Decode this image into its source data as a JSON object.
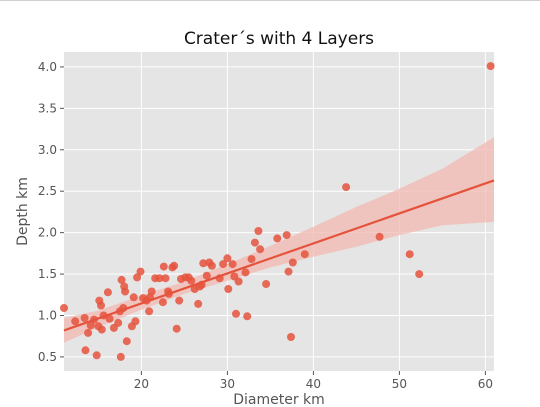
{
  "chart_data": {
    "type": "scatter",
    "title": "Crater´s with 4 Layers",
    "xlabel": "Diameter km",
    "ylabel": "Depth km",
    "xlim": [
      11,
      61
    ],
    "ylim": [
      0.33,
      4.18
    ],
    "x_ticks": [
      20,
      30,
      40,
      50,
      60
    ],
    "x_tick_labels": [
      "20",
      "30",
      "40",
      "50",
      "60"
    ],
    "y_ticks": [
      0.5,
      1.0,
      1.5,
      2.0,
      2.5,
      3.0,
      3.5,
      4.0
    ],
    "y_tick_labels": [
      "0.5",
      "1.0",
      "1.5",
      "2.0",
      "2.5",
      "3.0",
      "3.5",
      "4.0"
    ],
    "grid": true,
    "colors": {
      "points": "#e5533d",
      "line": "#e5533d",
      "band": "#f2b8b0",
      "background": "#e5e5e5",
      "grid": "#ffffff"
    },
    "points": [
      [
        11.0,
        1.09
      ],
      [
        12.3,
        0.93
      ],
      [
        13.4,
        0.97
      ],
      [
        13.5,
        0.58
      ],
      [
        13.8,
        0.79
      ],
      [
        14.1,
        0.88
      ],
      [
        14.5,
        0.95
      ],
      [
        14.8,
        0.52
      ],
      [
        15.0,
        0.87
      ],
      [
        15.1,
        1.18
      ],
      [
        15.3,
        1.12
      ],
      [
        15.4,
        0.83
      ],
      [
        15.6,
        1.0
      ],
      [
        16.1,
        1.28
      ],
      [
        16.3,
        0.96
      ],
      [
        16.8,
        0.85
      ],
      [
        17.3,
        0.91
      ],
      [
        17.5,
        1.05
      ],
      [
        17.6,
        0.5
      ],
      [
        17.7,
        1.43
      ],
      [
        17.9,
        1.09
      ],
      [
        18.0,
        1.35
      ],
      [
        18.1,
        1.29
      ],
      [
        18.3,
        0.69
      ],
      [
        18.9,
        0.87
      ],
      [
        19.1,
        1.22
      ],
      [
        19.3,
        0.93
      ],
      [
        19.5,
        1.46
      ],
      [
        19.9,
        1.53
      ],
      [
        20.2,
        1.21
      ],
      [
        20.6,
        1.18
      ],
      [
        20.9,
        1.05
      ],
      [
        21.0,
        1.22
      ],
      [
        21.2,
        1.29
      ],
      [
        21.6,
        1.45
      ],
      [
        22.1,
        1.45
      ],
      [
        22.5,
        1.16
      ],
      [
        22.6,
        1.59
      ],
      [
        22.8,
        1.45
      ],
      [
        23.1,
        1.29
      ],
      [
        23.2,
        1.26
      ],
      [
        23.6,
        1.58
      ],
      [
        23.8,
        1.6
      ],
      [
        24.1,
        0.84
      ],
      [
        24.4,
        1.18
      ],
      [
        24.6,
        1.44
      ],
      [
        25.1,
        1.46
      ],
      [
        25.5,
        1.46
      ],
      [
        25.8,
        1.42
      ],
      [
        26.2,
        1.32
      ],
      [
        26.6,
        1.14
      ],
      [
        26.8,
        1.35
      ],
      [
        27.0,
        1.37
      ],
      [
        27.2,
        1.63
      ],
      [
        27.6,
        1.48
      ],
      [
        27.9,
        1.64
      ],
      [
        28.2,
        1.6
      ],
      [
        29.1,
        1.45
      ],
      [
        29.5,
        1.62
      ],
      [
        30.0,
        1.69
      ],
      [
        30.1,
        1.32
      ],
      [
        30.6,
        1.62
      ],
      [
        30.8,
        1.47
      ],
      [
        31.0,
        1.02
      ],
      [
        31.3,
        1.41
      ],
      [
        32.1,
        1.52
      ],
      [
        32.3,
        0.99
      ],
      [
        32.8,
        1.68
      ],
      [
        33.2,
        1.88
      ],
      [
        33.6,
        2.02
      ],
      [
        33.8,
        1.8
      ],
      [
        34.5,
        1.38
      ],
      [
        35.8,
        1.93
      ],
      [
        36.9,
        1.97
      ],
      [
        37.1,
        1.53
      ],
      [
        37.4,
        0.74
      ],
      [
        37.6,
        1.64
      ],
      [
        39.0,
        1.74
      ],
      [
        43.8,
        2.55
      ],
      [
        47.7,
        1.95
      ],
      [
        51.2,
        1.74
      ],
      [
        52.3,
        1.5
      ],
      [
        60.6,
        4.01
      ]
    ],
    "regression": {
      "x": [
        11,
        61
      ],
      "y": [
        0.82,
        2.63
      ]
    },
    "confidence_band": {
      "x": [
        11,
        15,
        20,
        25,
        30,
        35,
        40,
        45,
        50,
        55,
        61
      ],
      "upper": [
        0.97,
        1.06,
        1.24,
        1.41,
        1.62,
        1.84,
        2.07,
        2.31,
        2.53,
        2.77,
        3.15
      ],
      "lower": [
        0.67,
        0.86,
        1.07,
        1.26,
        1.42,
        1.58,
        1.71,
        1.83,
        1.97,
        2.09,
        2.13
      ]
    }
  }
}
